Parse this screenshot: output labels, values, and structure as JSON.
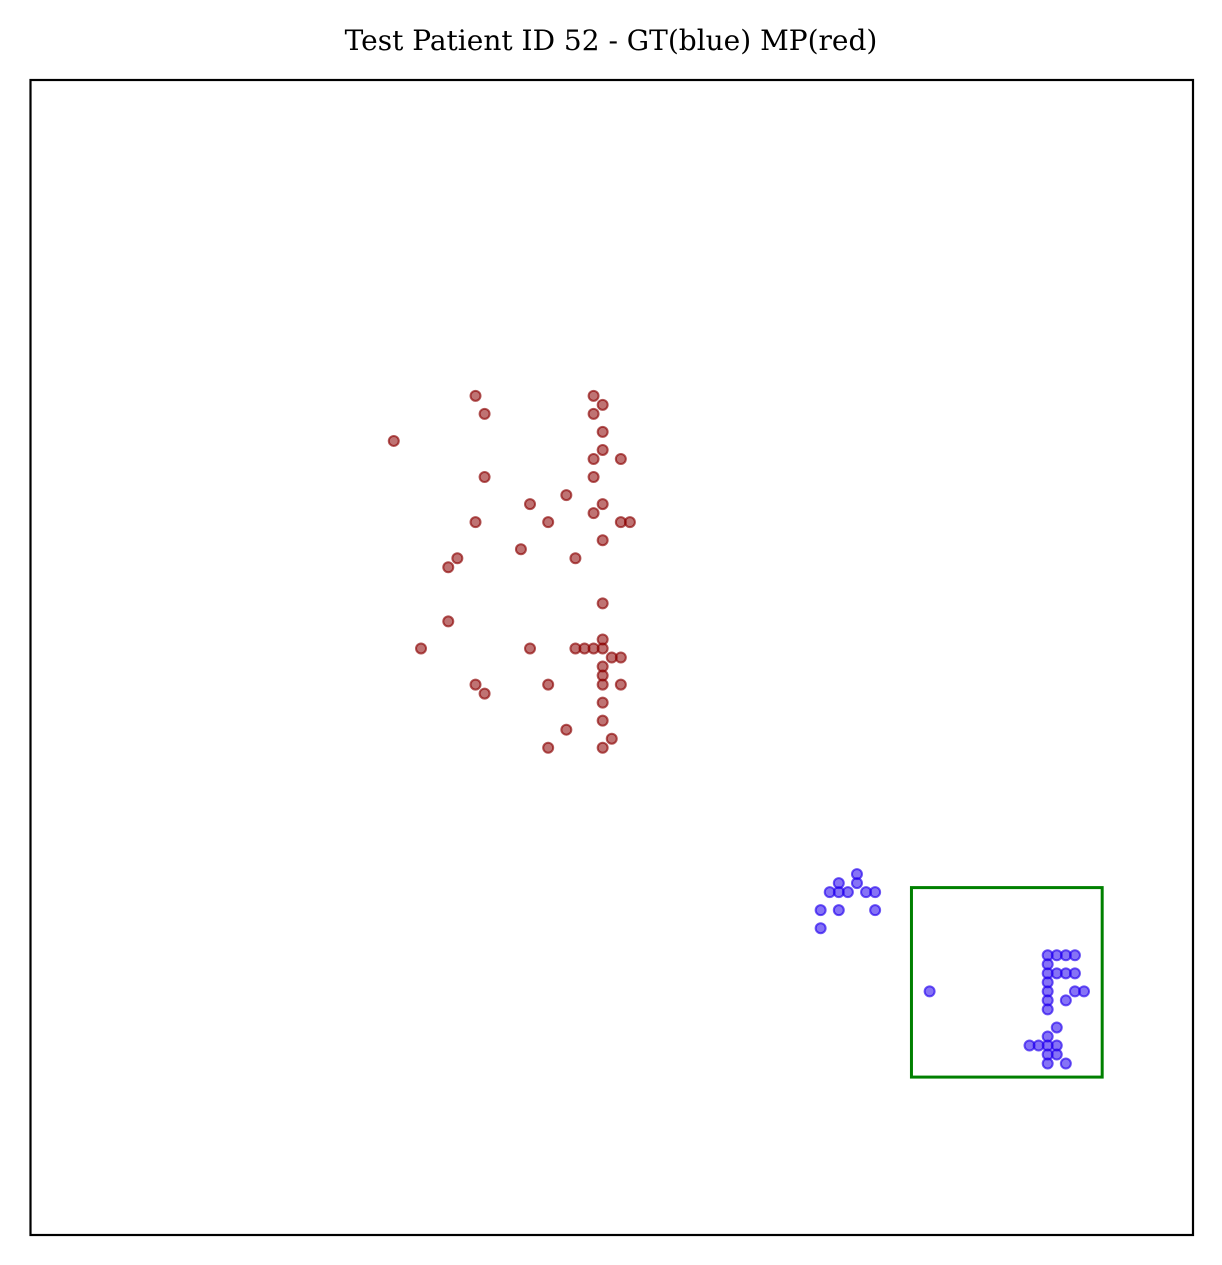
{
  "chart_data": {
    "type": "scatter",
    "title": "Test Patient ID 52 - GT(blue) MP(red)",
    "xlabel": "",
    "ylabel": "",
    "xlim": [
      0,
      128
    ],
    "ylim": [
      0,
      128
    ],
    "y_inverted": true,
    "grid": false,
    "ticks_visible": false,
    "colors": {
      "gt": "#2200ee",
      "mp": "#8b0000",
      "box": "#008000",
      "frame": "#000000"
    },
    "series": [
      {
        "key": "mp",
        "color": "#8b0000",
        "points": [
          [
            49,
            35
          ],
          [
            50,
            37
          ],
          [
            62,
            35
          ],
          [
            63,
            36
          ],
          [
            62,
            37
          ],
          [
            40,
            40
          ],
          [
            63,
            39
          ],
          [
            63,
            41
          ],
          [
            62,
            42
          ],
          [
            65,
            42
          ],
          [
            50,
            44
          ],
          [
            62,
            44
          ],
          [
            59,
            46
          ],
          [
            55,
            47
          ],
          [
            63,
            47
          ],
          [
            62,
            48
          ],
          [
            49,
            49
          ],
          [
            57,
            49
          ],
          [
            65,
            49
          ],
          [
            66,
            49
          ],
          [
            63,
            51
          ],
          [
            54,
            52
          ],
          [
            47,
            53
          ],
          [
            60,
            53
          ],
          [
            46,
            54
          ],
          [
            63,
            58
          ],
          [
            46,
            60
          ],
          [
            63,
            62
          ],
          [
            43,
            63
          ],
          [
            55,
            63
          ],
          [
            60,
            63
          ],
          [
            61,
            63
          ],
          [
            62,
            63
          ],
          [
            63,
            63
          ],
          [
            64,
            64
          ],
          [
            65,
            64
          ],
          [
            63,
            65
          ],
          [
            63,
            66
          ],
          [
            49,
            67
          ],
          [
            50,
            68
          ],
          [
            57,
            67
          ],
          [
            63,
            67
          ],
          [
            65,
            67
          ],
          [
            63,
            69
          ],
          [
            63,
            71
          ],
          [
            59,
            72
          ],
          [
            64,
            73
          ],
          [
            57,
            74
          ],
          [
            63,
            74
          ]
        ]
      },
      {
        "key": "gt",
        "color": "#2200ee",
        "points": [
          [
            91,
            88
          ],
          [
            89,
            89
          ],
          [
            91,
            89
          ],
          [
            88,
            90
          ],
          [
            89,
            90
          ],
          [
            90,
            90
          ],
          [
            92,
            90
          ],
          [
            93,
            90
          ],
          [
            87,
            92
          ],
          [
            89,
            92
          ],
          [
            93,
            92
          ],
          [
            87,
            94
          ],
          [
            112,
            97
          ],
          [
            113,
            97
          ],
          [
            114,
            97
          ],
          [
            115,
            97
          ],
          [
            112,
            98
          ],
          [
            112,
            99
          ],
          [
            113,
            99
          ],
          [
            114,
            99
          ],
          [
            115,
            99
          ],
          [
            112,
            100
          ],
          [
            99,
            101
          ],
          [
            112,
            101
          ],
          [
            115,
            101
          ],
          [
            116,
            101
          ],
          [
            112,
            102
          ],
          [
            114,
            102
          ],
          [
            112,
            103
          ],
          [
            113,
            105
          ],
          [
            112,
            106
          ],
          [
            110,
            107
          ],
          [
            111,
            107
          ],
          [
            112,
            107
          ],
          [
            113,
            107
          ],
          [
            112,
            108
          ],
          [
            113,
            108
          ],
          [
            112,
            109
          ],
          [
            114,
            109
          ]
        ]
      }
    ],
    "boxes": [
      {
        "x0": 97,
        "x1": 118,
        "y0": 89.5,
        "y1": 110.5,
        "color": "#008000"
      }
    ]
  }
}
